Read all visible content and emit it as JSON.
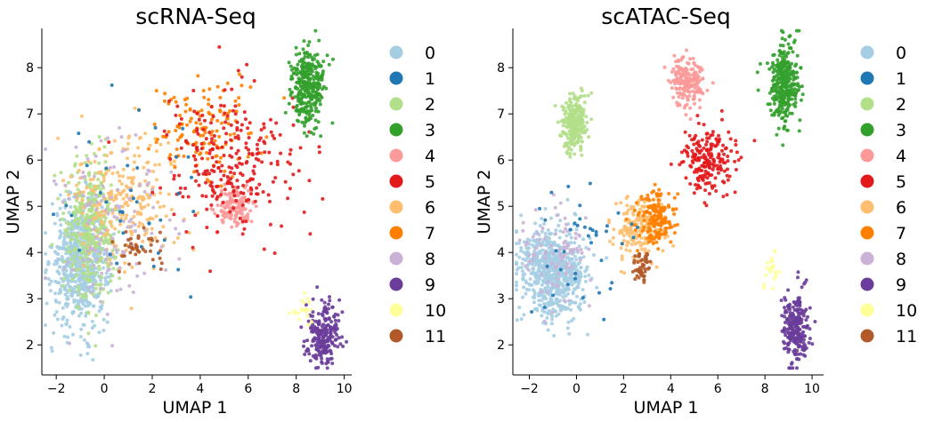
{
  "chart_data": [
    {
      "type": "scatter",
      "title": "scRNA-Seq",
      "xlabel": "UMAP 1",
      "ylabel": "UMAP 2",
      "xlim": [
        -2.6,
        10.2
      ],
      "ylim": [
        1.35,
        8.85
      ],
      "xticks": [
        -2,
        0,
        2,
        4,
        6,
        8,
        10
      ],
      "yticks": [
        2,
        3,
        4,
        5,
        6,
        7,
        8
      ],
      "grid": false,
      "legend_position": "right",
      "legend": [
        "0",
        "1",
        "2",
        "3",
        "4",
        "5",
        "6",
        "7",
        "8",
        "9",
        "10",
        "11"
      ],
      "clusters": [
        {
          "label": "0",
          "color": "#a6cee3",
          "n": 700,
          "center": [
            -1.0,
            3.8
          ],
          "spread": [
            0.8,
            0.9
          ]
        },
        {
          "label": "2",
          "color": "#b2df8a",
          "n": 380,
          "center": [
            -0.5,
            4.5
          ],
          "spread": [
            0.7,
            1.0
          ]
        },
        {
          "label": "6",
          "color": "#fdbf6f",
          "n": 240,
          "center": [
            0.8,
            5.2
          ],
          "spread": [
            1.6,
            1.0
          ]
        },
        {
          "label": "8",
          "color": "#cab2d6",
          "n": 130,
          "center": [
            0.5,
            4.6
          ],
          "spread": [
            1.8,
            1.3
          ]
        },
        {
          "label": "7",
          "color": "#ff7f00",
          "n": 140,
          "center": [
            4.2,
            6.6
          ],
          "spread": [
            1.4,
            0.7
          ]
        },
        {
          "label": "4",
          "color": "#fb9a99",
          "n": 140,
          "center": [
            5.4,
            5.0
          ],
          "spread": [
            0.5,
            0.28
          ]
        },
        {
          "label": "5",
          "color": "#e31a1c",
          "n": 260,
          "center": [
            5.2,
            6.0
          ],
          "spread": [
            1.8,
            1.0
          ]
        },
        {
          "label": "3",
          "color": "#33a02c",
          "n": 320,
          "center": [
            8.5,
            7.6
          ],
          "spread": [
            0.45,
            0.55
          ]
        },
        {
          "label": "9",
          "color": "#6a3d9a",
          "n": 230,
          "center": [
            9.1,
            2.2
          ],
          "spread": [
            0.45,
            0.45
          ]
        },
        {
          "label": "10",
          "color": "#ffff99",
          "n": 20,
          "center": [
            8.3,
            2.8
          ],
          "spread": [
            0.3,
            0.25
          ]
        },
        {
          "label": "11",
          "color": "#b15928",
          "n": 40,
          "center": [
            1.5,
            4.2
          ],
          "spread": [
            0.8,
            0.4
          ]
        },
        {
          "label": "1",
          "color": "#1f78b4",
          "n": 40,
          "center": [
            1.5,
            5.0
          ],
          "spread": [
            2.0,
            1.3
          ]
        }
      ]
    },
    {
      "type": "scatter",
      "title": "scATAC-Seq",
      "xlabel": "UMAP 1",
      "ylabel": "UMAP 2",
      "xlim": [
        -2.7,
        10.3
      ],
      "ylim": [
        1.35,
        8.85
      ],
      "xticks": [
        -2,
        0,
        2,
        4,
        6,
        8,
        10
      ],
      "yticks": [
        2,
        3,
        4,
        5,
        6,
        7,
        8
      ],
      "grid": false,
      "legend_position": "right",
      "legend": [
        "0",
        "1",
        "2",
        "3",
        "4",
        "5",
        "6",
        "7",
        "8",
        "9",
        "10",
        "11"
      ],
      "clusters": [
        {
          "label": "0",
          "color": "#a6cee3",
          "n": 700,
          "center": [
            -1.0,
            3.6
          ],
          "spread": [
            0.9,
            0.65
          ]
        },
        {
          "label": "2",
          "color": "#b2df8a",
          "n": 280,
          "center": [
            -0.1,
            6.8
          ],
          "spread": [
            0.35,
            0.4
          ]
        },
        {
          "label": "8",
          "color": "#cab2d6",
          "n": 90,
          "center": [
            -0.8,
            3.9
          ],
          "spread": [
            0.9,
            0.6
          ]
        },
        {
          "label": "6",
          "color": "#fdbf6f",
          "n": 170,
          "center": [
            2.6,
            4.5
          ],
          "spread": [
            0.7,
            0.45
          ]
        },
        {
          "label": "7",
          "color": "#ff7f00",
          "n": 170,
          "center": [
            3.4,
            4.7
          ],
          "spread": [
            0.5,
            0.4
          ]
        },
        {
          "label": "11",
          "color": "#b15928",
          "n": 50,
          "center": [
            2.8,
            3.7
          ],
          "spread": [
            0.25,
            0.25
          ]
        },
        {
          "label": "4",
          "color": "#fb9a99",
          "n": 200,
          "center": [
            4.7,
            7.7
          ],
          "spread": [
            0.45,
            0.35
          ]
        },
        {
          "label": "5",
          "color": "#e31a1c",
          "n": 200,
          "center": [
            5.5,
            6.0
          ],
          "spread": [
            0.8,
            0.5
          ]
        },
        {
          "label": "3",
          "color": "#33a02c",
          "n": 320,
          "center": [
            8.8,
            7.7
          ],
          "spread": [
            0.4,
            0.6
          ]
        },
        {
          "label": "9",
          "color": "#6a3d9a",
          "n": 240,
          "center": [
            9.3,
            2.4
          ],
          "spread": [
            0.35,
            0.5
          ]
        },
        {
          "label": "10",
          "color": "#ffff99",
          "n": 22,
          "center": [
            8.2,
            3.6
          ],
          "spread": [
            0.3,
            0.3
          ]
        },
        {
          "label": "1",
          "color": "#1f78b4",
          "n": 40,
          "center": [
            0.8,
            4.0
          ],
          "spread": [
            1.6,
            0.9
          ]
        }
      ]
    }
  ]
}
